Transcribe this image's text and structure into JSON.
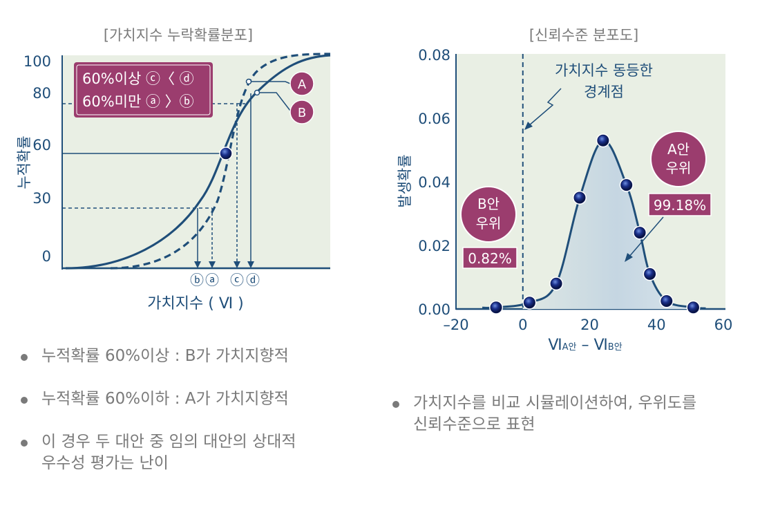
{
  "colors": {
    "navy": "#1f4e79",
    "magenta": "#9b3d6e",
    "panel_bg": "#e9efe4",
    "gray": "#7a7a7a",
    "fill": "#cfdde6"
  },
  "chart_data": [
    {
      "type": "line",
      "title": "[가치지수 누락확률분포]",
      "ylabel": "누적확률",
      "xlabel": "가치지수 ( Ⅵ )",
      "yticks": [
        "100",
        "80",
        "60",
        "30",
        "0"
      ],
      "series": [
        {
          "name": "A",
          "style": "solid"
        },
        {
          "name": "B",
          "style": "dashed"
        }
      ],
      "legend_box": {
        "line1": "60%이상 ⓒ〈 ⓓ",
        "line2": "60%미만 ⓐ 〉ⓑ"
      },
      "markers": [
        "ⓑ",
        "ⓐ",
        "ⓒ",
        "ⓓ"
      ]
    },
    {
      "type": "line",
      "title": "[신뢰수준 분포도]",
      "ylabel": "발생확률",
      "xlabel_main": "Ⅵ",
      "xlabel_sub_a": "A안",
      "xlabel_dash": " – ",
      "xlabel_sub_b": "B안",
      "ylim": [
        0,
        0.08
      ],
      "xlim": [
        -20,
        60
      ],
      "yticks": [
        "0.08",
        "0.06",
        "0.04",
        "0.02",
        "0.00"
      ],
      "xticks": [
        "–20",
        "0",
        "20",
        "40",
        "60"
      ],
      "x": [
        -8,
        2,
        10,
        17,
        24,
        31,
        35,
        38,
        43,
        51
      ],
      "y": [
        0.0005,
        0.002,
        0.008,
        0.035,
        0.053,
        0.039,
        0.024,
        0.011,
        0.0025,
        0.0005
      ],
      "threshold_x": 0,
      "threshold_label": {
        "line1": "가치지수 동등한",
        "line2": "경계점"
      },
      "badge_a": {
        "line1": "A안",
        "line2": "우위",
        "value": "99.18%"
      },
      "badge_b": {
        "line1": "B안",
        "line2": "우위",
        "value": "0.82%"
      }
    }
  ],
  "bullets_left": [
    "누적확률 60%이상 : B가 가치지향적",
    "누적확률 60%이하 : A가 가치지향적",
    "이 경우 두 대안 중 임의 대안의 상대적\n우수성 평가는 난이"
  ],
  "bullets_right": [
    "가치지수를 비교 시뮬레이션하여, 우위도를\n신뢰수준으로 표현"
  ]
}
